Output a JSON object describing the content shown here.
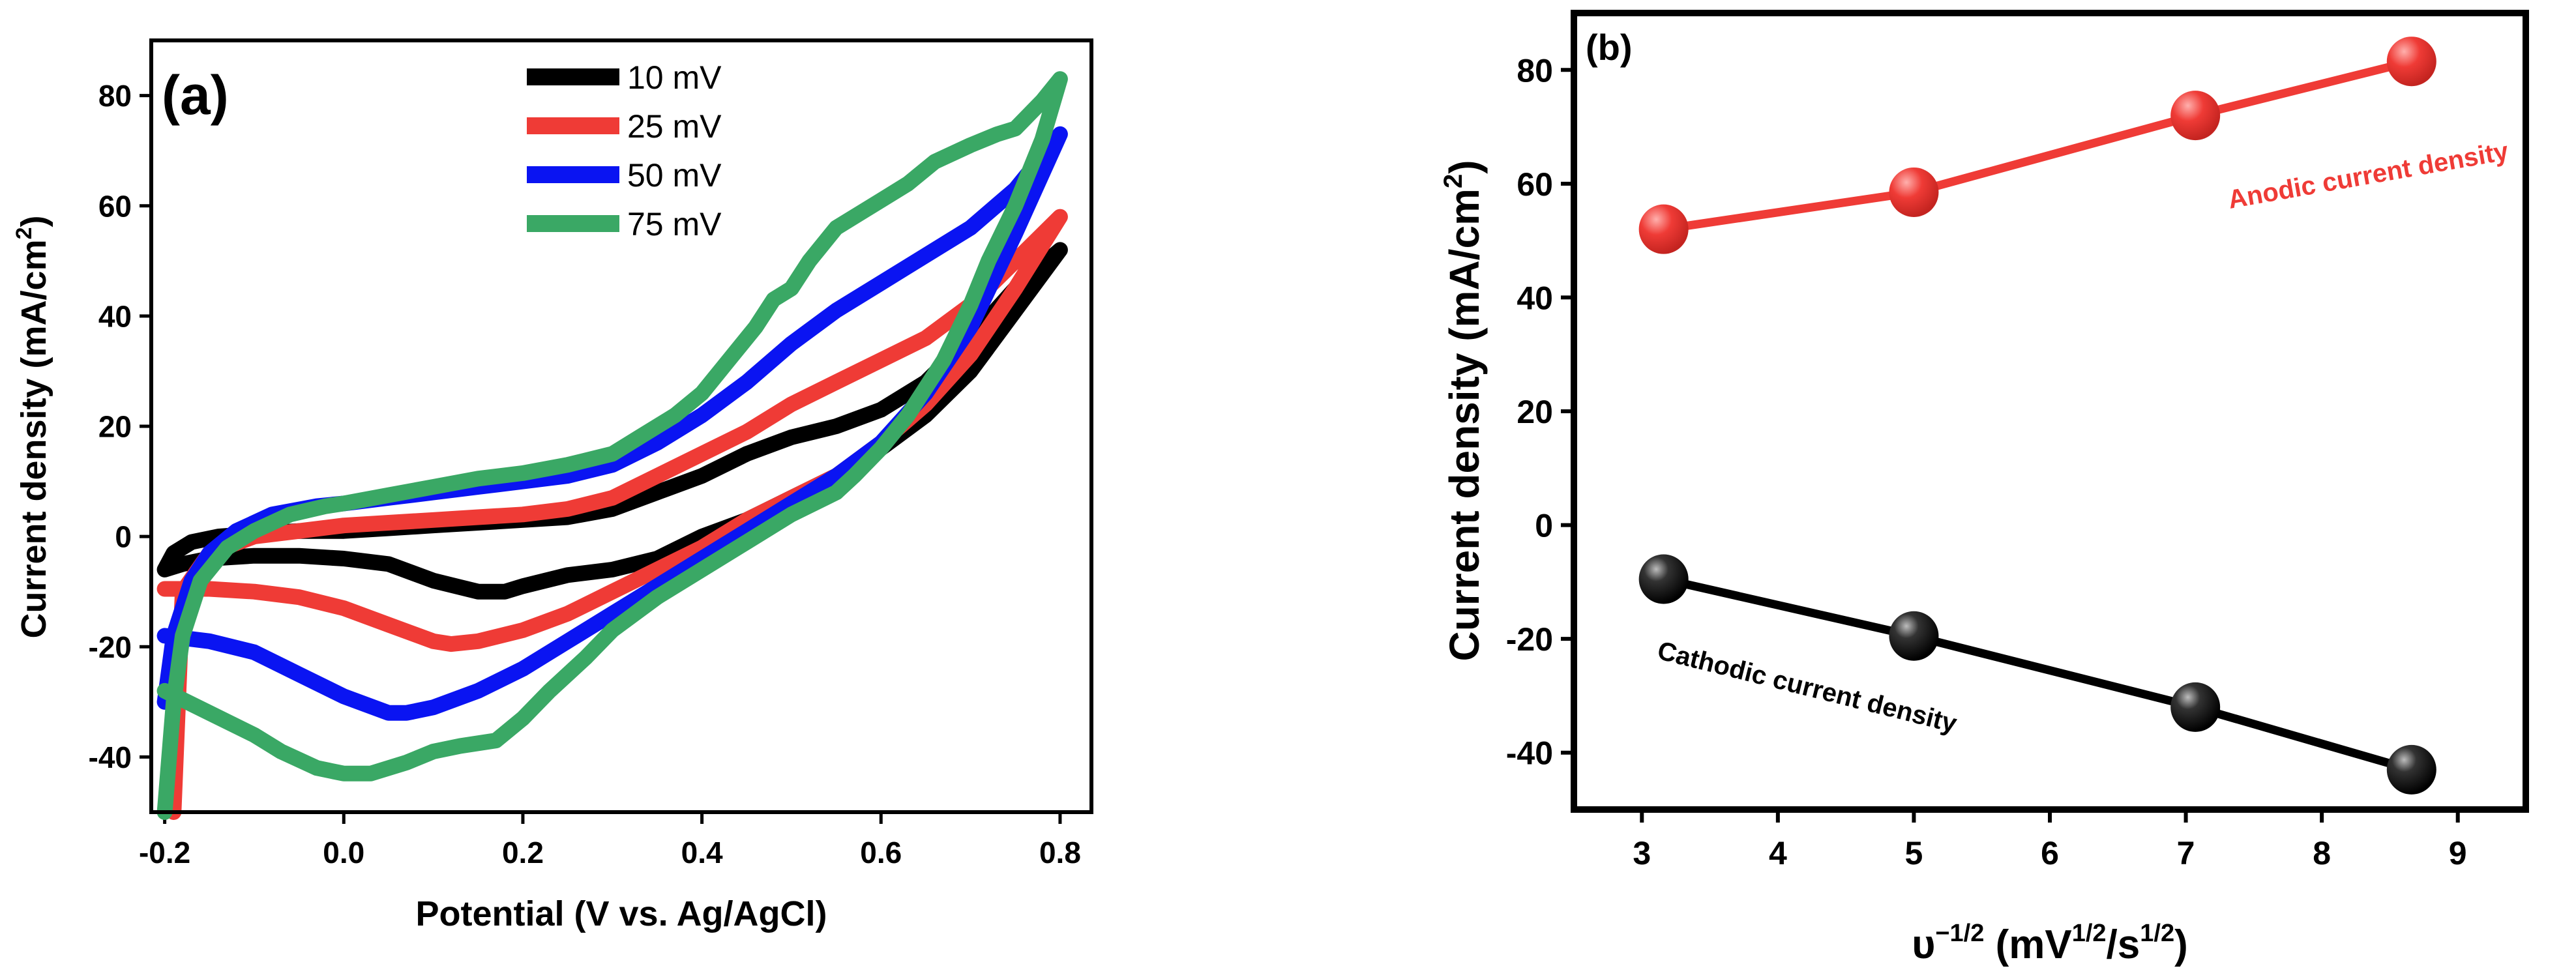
{
  "chart_data": [
    {
      "type": "line",
      "panel_label": "(a)",
      "xlabel": "Potential (V vs. Ag/AgCl)",
      "ylabel_main": "Current density (mA/cm",
      "ylabel_sup": "2",
      "ylabel_end": ")",
      "xlim": [
        -0.2,
        0.8
      ],
      "ylim": [
        -50,
        90
      ],
      "xticks": [
        -0.2,
        0.0,
        0.2,
        0.4,
        0.6,
        0.8
      ],
      "xtick_labels": [
        "-0.2",
        "0.0",
        "0.2",
        "0.4",
        "0.6",
        "0.8"
      ],
      "yticks": [
        -40,
        -20,
        0,
        20,
        40,
        60,
        80
      ],
      "ytick_labels": [
        "-40",
        "-20",
        "0",
        "20",
        "40",
        "60",
        "80"
      ],
      "legend_position": "top-center",
      "series": [
        {
          "name": "10 mV",
          "color": "#000000",
          "x": [
            -0.2,
            -0.19,
            -0.17,
            -0.14,
            -0.1,
            -0.05,
            0.0,
            0.05,
            0.1,
            0.15,
            0.2,
            0.25,
            0.3,
            0.35,
            0.4,
            0.45,
            0.5,
            0.55,
            0.6,
            0.65,
            0.7,
            0.75,
            0.8,
            0.8,
            0.75,
            0.7,
            0.65,
            0.6,
            0.55,
            0.5,
            0.45,
            0.4,
            0.35,
            0.3,
            0.25,
            0.2,
            0.18,
            0.15,
            0.1,
            0.05,
            0.0,
            -0.05,
            -0.1,
            -0.15,
            -0.18,
            -0.2
          ],
          "y": [
            -6,
            -3,
            -1,
            0,
            0.5,
            1,
            1,
            1.5,
            2,
            2.5,
            3,
            3.5,
            5,
            8,
            11,
            15,
            18,
            20,
            23,
            28,
            36,
            45,
            52,
            52,
            41,
            30,
            22,
            16,
            11,
            7,
            3,
            0,
            -4,
            -6,
            -7,
            -9,
            -10,
            -10,
            -8,
            -5,
            -4,
            -3.5,
            -3.5,
            -4,
            -5,
            -6
          ]
        },
        {
          "name": "25 mV",
          "color": "#ef3b36",
          "x": [
            -0.19,
            -0.18,
            -0.15,
            -0.1,
            -0.05,
            0.0,
            0.05,
            0.1,
            0.15,
            0.2,
            0.25,
            0.3,
            0.35,
            0.4,
            0.45,
            0.5,
            0.55,
            0.6,
            0.65,
            0.7,
            0.75,
            0.8,
            0.8,
            0.75,
            0.7,
            0.65,
            0.6,
            0.55,
            0.5,
            0.45,
            0.4,
            0.35,
            0.3,
            0.25,
            0.2,
            0.15,
            0.12,
            0.1,
            0.05,
            0.0,
            -0.05,
            -0.1,
            -0.15,
            -0.2
          ],
          "y": [
            -50,
            -10,
            -3,
            0,
            1,
            2,
            2.5,
            3,
            3.5,
            4,
            5,
            7,
            11,
            15,
            19,
            24,
            28,
            32,
            36,
            42,
            50,
            58,
            58,
            45,
            33,
            24,
            17,
            11,
            7,
            3,
            -2,
            -6,
            -10,
            -14,
            -17,
            -19,
            -19.5,
            -19,
            -16,
            -13,
            -11,
            -10,
            -9.5,
            -9.5
          ]
        },
        {
          "name": "50 mV",
          "color": "#0a14f2",
          "x": [
            -0.2,
            -0.19,
            -0.17,
            -0.15,
            -0.12,
            -0.08,
            -0.03,
            0.0,
            0.05,
            0.1,
            0.15,
            0.2,
            0.25,
            0.3,
            0.35,
            0.4,
            0.45,
            0.5,
            0.55,
            0.6,
            0.65,
            0.7,
            0.75,
            0.8,
            0.8,
            0.75,
            0.7,
            0.65,
            0.6,
            0.55,
            0.5,
            0.45,
            0.4,
            0.35,
            0.3,
            0.25,
            0.2,
            0.15,
            0.1,
            0.07,
            0.05,
            0.0,
            -0.05,
            -0.1,
            -0.15,
            -0.2
          ],
          "y": [
            -30,
            -18,
            -8,
            -3,
            1,
            4,
            5.5,
            6,
            7,
            8,
            9,
            10,
            11,
            13,
            17,
            22,
            28,
            35,
            41,
            46,
            51,
            56,
            63,
            73,
            73,
            55,
            38,
            26,
            17,
            11,
            6,
            1,
            -4,
            -9,
            -14,
            -19,
            -24,
            -28,
            -31,
            -32,
            -32,
            -29,
            -25,
            -21,
            -19,
            -18
          ]
        },
        {
          "name": "75 mV",
          "color": "#3aa865",
          "x": [
            -0.2,
            -0.19,
            -0.18,
            -0.16,
            -0.13,
            -0.1,
            -0.06,
            -0.02,
            0.0,
            0.05,
            0.1,
            0.15,
            0.2,
            0.25,
            0.3,
            0.33,
            0.37,
            0.4,
            0.43,
            0.46,
            0.48,
            0.5,
            0.52,
            0.55,
            0.58,
            0.6,
            0.63,
            0.66,
            0.7,
            0.73,
            0.75,
            0.78,
            0.8,
            0.8,
            0.78,
            0.75,
            0.72,
            0.7,
            0.67,
            0.63,
            0.6,
            0.57,
            0.55,
            0.5,
            0.45,
            0.4,
            0.35,
            0.3,
            0.27,
            0.23,
            0.2,
            0.17,
            0.13,
            0.1,
            0.07,
            0.03,
            0.0,
            -0.03,
            -0.07,
            -0.1,
            -0.15,
            -0.2
          ],
          "y": [
            -50,
            -30,
            -18,
            -8,
            -2,
            1,
            4,
            5.5,
            6,
            7.5,
            9,
            10.5,
            11.5,
            13,
            15,
            18,
            22,
            26,
            32,
            38,
            43,
            45,
            50,
            56,
            59,
            61,
            64,
            68,
            71,
            73,
            74,
            79,
            83,
            83,
            72,
            60,
            50,
            42,
            32,
            22,
            16,
            11,
            8,
            4,
            -1,
            -6,
            -11,
            -17,
            -22,
            -28,
            -33,
            -37,
            -38,
            -39,
            -41,
            -43,
            -43,
            -42,
            -39,
            -36,
            -32,
            -28
          ]
        }
      ]
    },
    {
      "type": "scatter",
      "panel_label": "(b)",
      "xlabel_base": "υ",
      "xlabel_sup": "−1/2",
      "xlabel_mid": " (mV",
      "xlabel_sup2": "1/2",
      "xlabel_mid2": "/s",
      "xlabel_sup3": "1/2",
      "xlabel_end": ")",
      "ylabel_main": "Current density (mA/cm",
      "ylabel_sup": "2",
      "ylabel_end": ")",
      "xlim": [
        2.5,
        9.5
      ],
      "ylim": [
        -50,
        90
      ],
      "xticks": [
        3,
        4,
        5,
        6,
        7,
        8,
        9
      ],
      "xtick_labels": [
        "3",
        "4",
        "5",
        "6",
        "7",
        "8",
        "9"
      ],
      "yticks": [
        -40,
        -20,
        0,
        20,
        40,
        60,
        80
      ],
      "ytick_labels": [
        "-40",
        "-20",
        "0",
        "20",
        "40",
        "60",
        "80"
      ],
      "series": [
        {
          "name": "Anodic current density",
          "color": "#ef3b36",
          "x": [
            3.16,
            5.0,
            7.07,
            8.66
          ],
          "y": [
            52,
            58.5,
            72,
            81.5
          ]
        },
        {
          "name": "Cathodic current density",
          "color": "#000000",
          "x": [
            3.16,
            5.0,
            7.07,
            8.66
          ],
          "y": [
            -9.5,
            -19.5,
            -32,
            -43
          ]
        }
      ]
    }
  ]
}
